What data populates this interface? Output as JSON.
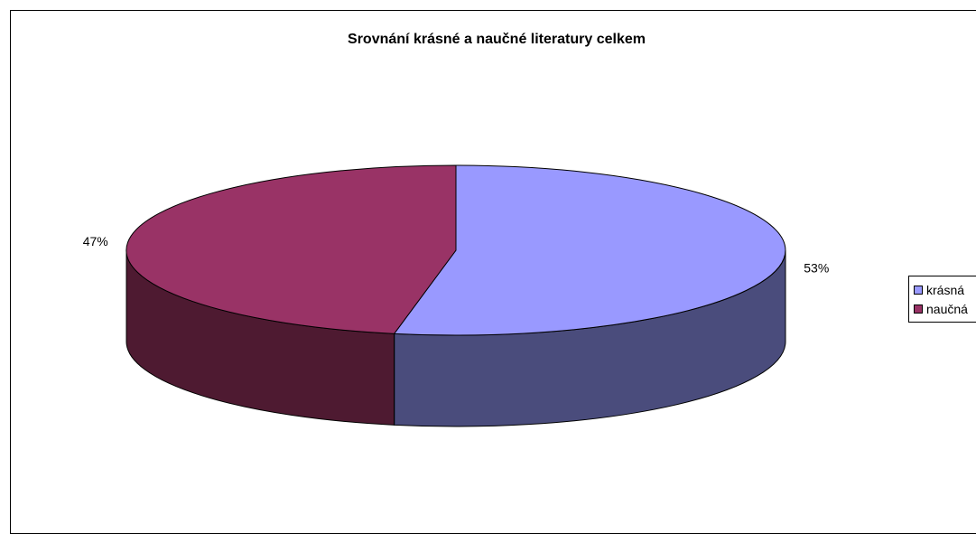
{
  "chart_data": {
    "type": "pie",
    "style": "3d",
    "title": "Srovnání krásné a naučné literatury celkem",
    "categories": [
      "krásná",
      "naučná"
    ],
    "values": [
      53,
      47
    ],
    "data_labels": [
      "53%",
      "47%"
    ],
    "colors": {
      "krásná": {
        "top": "#9999ff",
        "side": "#4a4c7c"
      },
      "naučná": {
        "top": "#993366",
        "side": "#4e1a31"
      }
    },
    "legend_position": "right"
  }
}
